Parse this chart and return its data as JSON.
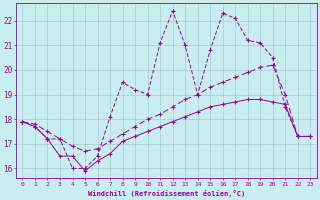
{
  "xlabel": "Windchill (Refroidissement éolien,°C)",
  "bg_color": "#c8eef0",
  "line_color": "#990099",
  "grid_color": "#b0c8d0",
  "xlim": [
    -0.5,
    23.5
  ],
  "ylim": [
    15.6,
    22.7
  ],
  "xticks": [
    0,
    1,
    2,
    3,
    4,
    5,
    6,
    7,
    8,
    9,
    10,
    11,
    12,
    13,
    14,
    15,
    16,
    17,
    18,
    19,
    20,
    21,
    22,
    23
  ],
  "yticks": [
    16,
    17,
    18,
    19,
    20,
    21,
    22
  ],
  "line1_x": [
    0,
    1,
    2,
    3,
    4,
    5,
    6,
    7,
    8,
    9,
    10,
    11,
    12,
    13,
    14,
    15,
    16,
    17,
    18,
    19,
    20,
    21,
    22,
    23
  ],
  "line1_y": [
    17.9,
    17.7,
    17.2,
    17.2,
    16.0,
    16.0,
    16.5,
    18.1,
    19.5,
    19.2,
    19.0,
    21.1,
    22.4,
    21.0,
    19.0,
    20.8,
    22.3,
    22.1,
    21.2,
    21.1,
    20.5,
    18.5,
    17.3,
    17.3
  ],
  "line2_x": [
    0,
    1,
    2,
    3,
    4,
    5,
    6,
    7,
    8,
    9,
    10,
    11,
    12,
    13,
    14,
    15,
    16,
    17,
    18,
    19,
    20,
    21,
    22,
    23
  ],
  "line2_y": [
    17.9,
    17.7,
    17.2,
    16.5,
    16.5,
    15.9,
    16.3,
    16.6,
    17.1,
    17.3,
    17.5,
    17.7,
    17.9,
    18.1,
    18.3,
    18.5,
    18.6,
    18.7,
    18.8,
    18.8,
    18.7,
    18.6,
    17.3,
    17.3
  ],
  "line3_x": [
    0,
    1,
    2,
    3,
    4,
    5,
    6,
    7,
    8,
    9,
    10,
    11,
    12,
    13,
    14,
    15,
    16,
    17,
    18,
    19,
    20,
    21,
    22,
    23
  ],
  "line3_y": [
    17.9,
    17.8,
    17.5,
    17.2,
    16.9,
    16.7,
    16.8,
    17.1,
    17.4,
    17.7,
    18.0,
    18.2,
    18.5,
    18.8,
    19.0,
    19.3,
    19.5,
    19.7,
    19.9,
    20.1,
    20.2,
    19.0,
    17.3,
    17.3
  ]
}
